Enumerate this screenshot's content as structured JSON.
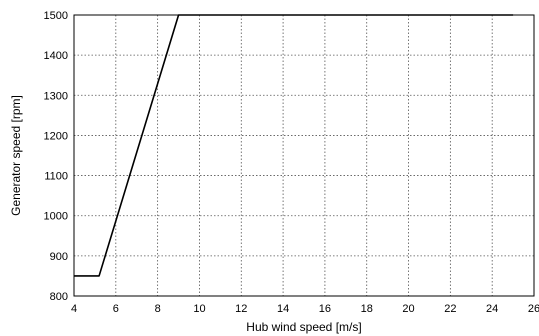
{
  "chart_data": {
    "type": "line",
    "title": "",
    "xlabel": "Hub wind speed  [m/s]",
    "ylabel": "Generator speed  [rpm]",
    "xlim": [
      4,
      26
    ],
    "ylim": [
      800,
      1500
    ],
    "xticks": [
      4,
      6,
      8,
      10,
      12,
      14,
      16,
      18,
      20,
      22,
      24,
      26
    ],
    "yticks": [
      800,
      900,
      1000,
      1100,
      1200,
      1300,
      1400,
      1500
    ],
    "grid": true,
    "grid_style": "dotted",
    "line_color": "#000000",
    "series": [
      {
        "x": [
          4,
          5.2,
          9.0,
          25
        ],
        "y": [
          850,
          850,
          1500,
          1500
        ]
      }
    ]
  }
}
